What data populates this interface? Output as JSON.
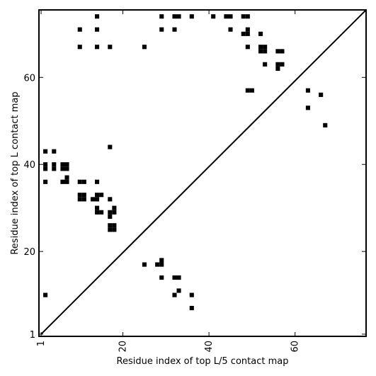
{
  "chart_data": {
    "type": "heatmap",
    "xlabel": "Residue index of top L/5 contact map",
    "ylabel": "Residue index of top L contact map",
    "xlim": [
      0.5,
      76.5
    ],
    "ylim": [
      0.5,
      75.5
    ],
    "x_ticks": [
      {
        "value": 1,
        "label": "1"
      },
      {
        "value": 20,
        "label": "20"
      },
      {
        "value": 40,
        "label": "40"
      },
      {
        "value": 60,
        "label": "60"
      }
    ],
    "y_ticks": [
      {
        "value": 1,
        "label": "1"
      },
      {
        "value": 20,
        "label": "20"
      },
      {
        "value": 40,
        "label": "40"
      },
      {
        "value": 60,
        "label": "60"
      }
    ],
    "diagonal": true,
    "upper_contacts": [
      [
        14,
        74
      ],
      [
        29,
        74
      ],
      [
        32,
        74
      ],
      [
        33,
        74
      ],
      [
        36,
        74
      ],
      [
        41,
        74
      ],
      [
        44,
        74
      ],
      [
        45,
        74
      ],
      [
        48,
        74
      ],
      [
        49,
        74
      ],
      [
        10,
        71
      ],
      [
        14,
        71
      ],
      [
        29,
        71
      ],
      [
        32,
        71
      ],
      [
        45,
        71
      ],
      [
        49,
        71
      ],
      [
        48,
        70
      ],
      [
        49,
        70
      ],
      [
        52,
        70
      ],
      [
        10,
        67
      ],
      [
        14,
        67
      ],
      [
        17,
        67
      ],
      [
        25,
        67
      ],
      [
        49,
        67
      ],
      [
        52,
        67
      ],
      [
        53,
        67
      ],
      [
        52,
        66
      ],
      [
        53,
        66
      ],
      [
        56,
        66
      ],
      [
        57,
        66
      ],
      [
        53,
        63
      ],
      [
        56,
        63
      ],
      [
        57,
        63
      ],
      [
        56,
        62
      ],
      [
        49,
        57
      ],
      [
        50,
        57
      ],
      [
        63,
        57
      ],
      [
        66,
        56
      ],
      [
        63,
        53
      ],
      [
        67,
        49
      ],
      [
        17,
        44
      ],
      [
        2,
        43
      ],
      [
        4,
        43
      ],
      [
        2,
        40
      ],
      [
        4,
        40
      ],
      [
        6,
        40
      ],
      [
        7,
        40
      ],
      [
        2,
        39
      ],
      [
        4,
        39
      ],
      [
        6,
        39
      ],
      [
        7,
        39
      ],
      [
        7,
        37
      ],
      [
        2,
        36
      ],
      [
        6,
        36
      ],
      [
        7,
        36
      ],
      [
        10,
        36
      ],
      [
        11,
        36
      ],
      [
        14,
        36
      ],
      [
        14,
        33
      ],
      [
        15,
        33
      ],
      [
        10,
        33
      ],
      [
        11,
        33
      ],
      [
        10,
        32
      ],
      [
        11,
        32
      ],
      [
        13,
        32
      ],
      [
        14,
        32
      ],
      [
        17,
        32
      ],
      [
        14,
        30
      ],
      [
        18,
        30
      ],
      [
        14,
        29
      ],
      [
        15,
        29
      ],
      [
        17,
        29
      ],
      [
        18,
        29
      ],
      [
        17,
        28
      ],
      [
        17,
        26
      ],
      [
        18,
        26
      ],
      [
        17,
        25
      ],
      [
        18,
        25
      ]
    ],
    "lower_contacts": [
      [
        29,
        18
      ],
      [
        25,
        17
      ],
      [
        28,
        17
      ],
      [
        29,
        17
      ],
      [
        29,
        14
      ],
      [
        32,
        14
      ],
      [
        33,
        14
      ],
      [
        33,
        11
      ],
      [
        2,
        10
      ],
      [
        32,
        10
      ],
      [
        36,
        10
      ],
      [
        36,
        7
      ]
    ],
    "marker_color": "#000000"
  }
}
